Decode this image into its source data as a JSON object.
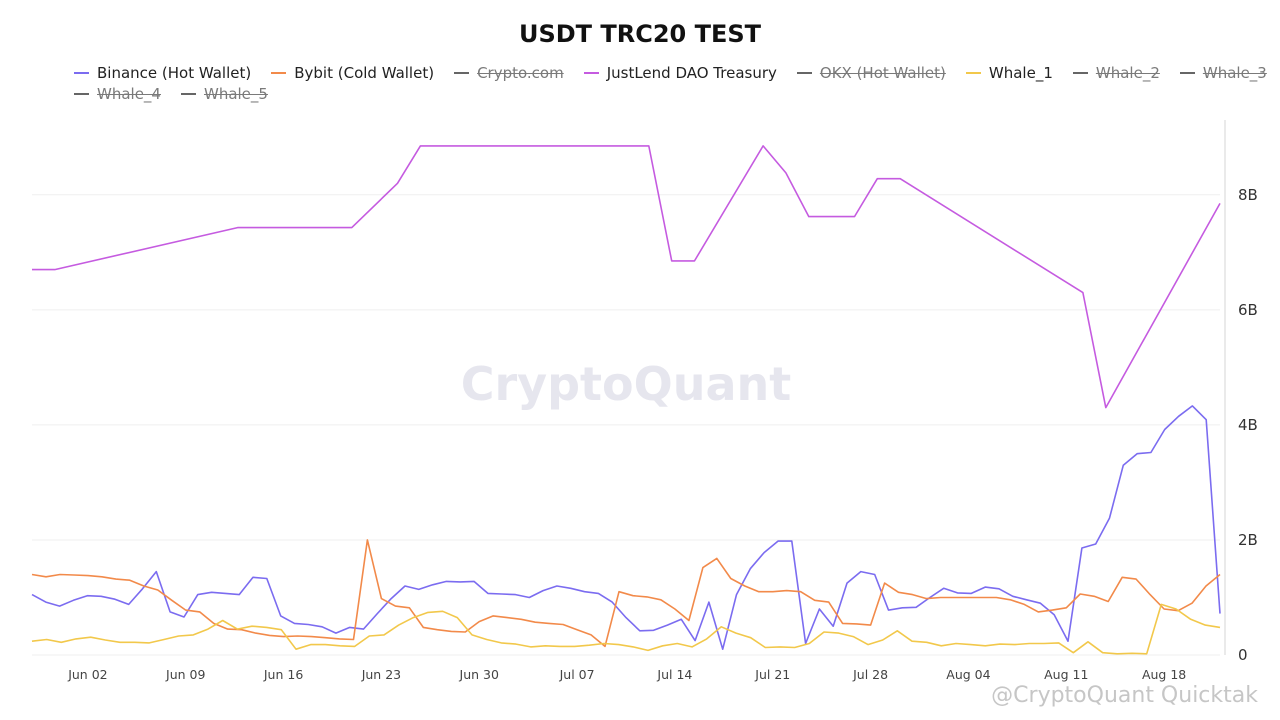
{
  "chart_data": {
    "type": "line",
    "title": "USDT TRC20 TEST",
    "x_start": "2025-05-29",
    "x_end": "2025-08-22",
    "x_ticks": [
      "Jun 02",
      "Jun 09",
      "Jun 16",
      "Jun 23",
      "Jun 30",
      "Jul 07",
      "Jul 14",
      "Jul 21",
      "Jul 28",
      "Aug 04",
      "Aug 11",
      "Aug 18"
    ],
    "x_tick_dates": [
      "2025-06-02",
      "2025-06-09",
      "2025-06-16",
      "2025-06-23",
      "2025-06-30",
      "2025-07-07",
      "2025-07-14",
      "2025-07-21",
      "2025-07-28",
      "2025-08-04",
      "2025-08-11",
      "2025-08-18"
    ],
    "y_ticks": [
      "0",
      "2B",
      "4B",
      "6B",
      "8B"
    ],
    "y_tick_values": [
      0,
      2,
      4,
      6,
      8
    ],
    "ylabel_unit": "B",
    "ylim": [
      0,
      9.3
    ],
    "grid": true,
    "legend_position": "top",
    "series": [
      {
        "name": "Binance (Hot Wallet)",
        "color": "#7b6cf0",
        "visible": true,
        "values": [
          1.05,
          0.92,
          0.85,
          0.95,
          1.03,
          1.02,
          0.97,
          0.88,
          1.15,
          1.45,
          0.75,
          0.66,
          1.05,
          1.09,
          1.07,
          1.05,
          1.35,
          1.33,
          0.68,
          0.55,
          0.53,
          0.49,
          0.38,
          0.48,
          0.45,
          0.72,
          0.98,
          1.2,
          1.14,
          1.22,
          1.28,
          1.27,
          1.28,
          1.07,
          1.06,
          1.05,
          1.0,
          1.12,
          1.2,
          1.16,
          1.1,
          1.07,
          0.92,
          0.65,
          0.42,
          0.43,
          0.52,
          0.62,
          0.25,
          0.92,
          0.1,
          1.05,
          1.5,
          1.78,
          1.98,
          1.98,
          0.2,
          0.8,
          0.5,
          1.25,
          1.45,
          1.4,
          0.78,
          0.82,
          0.83,
          1.0,
          1.16,
          1.08,
          1.07,
          1.18,
          1.15,
          1.02,
          0.96,
          0.9,
          0.7,
          0.24,
          1.86,
          1.93,
          2.38,
          3.3,
          3.5,
          3.52,
          3.92,
          4.15,
          4.33,
          4.09,
          0.72
        ]
      },
      {
        "name": "Bybit (Cold Wallet)",
        "color": "#f28a4a",
        "visible": true,
        "values": [
          1.4,
          1.36,
          1.4,
          1.39,
          1.38,
          1.36,
          1.32,
          1.3,
          1.2,
          1.13,
          0.95,
          0.78,
          0.75,
          0.55,
          0.45,
          0.44,
          0.38,
          0.34,
          0.32,
          0.33,
          0.32,
          0.3,
          0.28,
          0.27,
          2.0,
          0.98,
          0.85,
          0.82,
          0.48,
          0.44,
          0.41,
          0.4,
          0.58,
          0.68,
          0.65,
          0.62,
          0.57,
          0.55,
          0.53,
          0.44,
          0.35,
          0.15,
          1.1,
          1.03,
          1.01,
          0.96,
          0.8,
          0.6,
          1.52,
          1.68,
          1.33,
          1.2,
          1.1,
          1.1,
          1.12,
          1.1,
          0.95,
          0.92,
          0.55,
          0.54,
          0.52,
          1.25,
          1.09,
          1.05,
          0.98,
          1.0,
          1.0,
          1.0,
          1.0,
          1.0,
          0.96,
          0.88,
          0.75,
          0.78,
          0.82,
          1.06,
          1.02,
          0.93,
          1.35,
          1.32,
          1.05,
          0.8,
          0.77,
          0.9,
          1.2,
          1.4
        ]
      },
      {
        "name": "Crypto.com",
        "color": "#666666",
        "visible": false,
        "values": []
      },
      {
        "name": "JustLend DAO Treasury",
        "color": "#c55be0",
        "visible": true,
        "values": [
          6.7,
          6.7,
          null,
          null,
          null,
          null,
          null,
          null,
          null,
          7.43,
          7.43,
          7.43,
          7.43,
          7.43,
          7.43,
          null,
          8.2,
          8.85,
          8.85,
          8.85,
          8.85,
          8.85,
          8.85,
          8.85,
          8.85,
          8.85,
          8.85,
          8.85,
          6.85,
          6.85,
          null,
          null,
          8.85,
          8.38,
          7.62,
          7.62,
          7.62,
          8.28,
          8.28,
          null,
          null,
          null,
          null,
          null,
          null,
          null,
          6.3,
          4.3,
          null,
          null,
          null,
          null,
          7.85
        ]
      },
      {
        "name": "OKX (Hot Wallet)",
        "color": "#666666",
        "visible": false,
        "values": []
      },
      {
        "name": "Whale_1",
        "color": "#f2c84b",
        "visible": true,
        "values": [
          0.24,
          0.27,
          0.22,
          0.28,
          0.31,
          0.26,
          0.22,
          0.22,
          0.21,
          0.27,
          0.33,
          0.35,
          0.45,
          0.6,
          0.45,
          0.5,
          0.48,
          0.44,
          0.1,
          0.18,
          0.18,
          0.16,
          0.15,
          0.33,
          0.35,
          0.52,
          0.65,
          0.74,
          0.76,
          0.65,
          0.35,
          0.27,
          0.21,
          0.19,
          0.14,
          0.16,
          0.15,
          0.15,
          0.17,
          0.2,
          0.18,
          0.14,
          0.08,
          0.16,
          0.2,
          0.14,
          0.28,
          0.49,
          0.38,
          0.3,
          0.13,
          0.14,
          0.13,
          0.2,
          0.4,
          0.38,
          0.32,
          0.18,
          0.26,
          0.42,
          0.24,
          0.22,
          0.16,
          0.2,
          0.18,
          0.16,
          0.19,
          0.18,
          0.2,
          0.2,
          0.21,
          0.04,
          0.23,
          0.04,
          0.02,
          0.03,
          0.02,
          0.88,
          0.8,
          0.62,
          0.52,
          0.48
        ]
      },
      {
        "name": "Whale_2",
        "color": "#666666",
        "visible": false,
        "values": []
      },
      {
        "name": "Whale_3",
        "color": "#666666",
        "visible": false,
        "values": []
      },
      {
        "name": "Whale_4",
        "color": "#666666",
        "visible": false,
        "values": []
      },
      {
        "name": "Whale_5",
        "color": "#666666",
        "visible": false,
        "values": []
      }
    ],
    "watermark": "CryptoQuant"
  },
  "footer_watermark": "@CryptoQuant Quicktak"
}
